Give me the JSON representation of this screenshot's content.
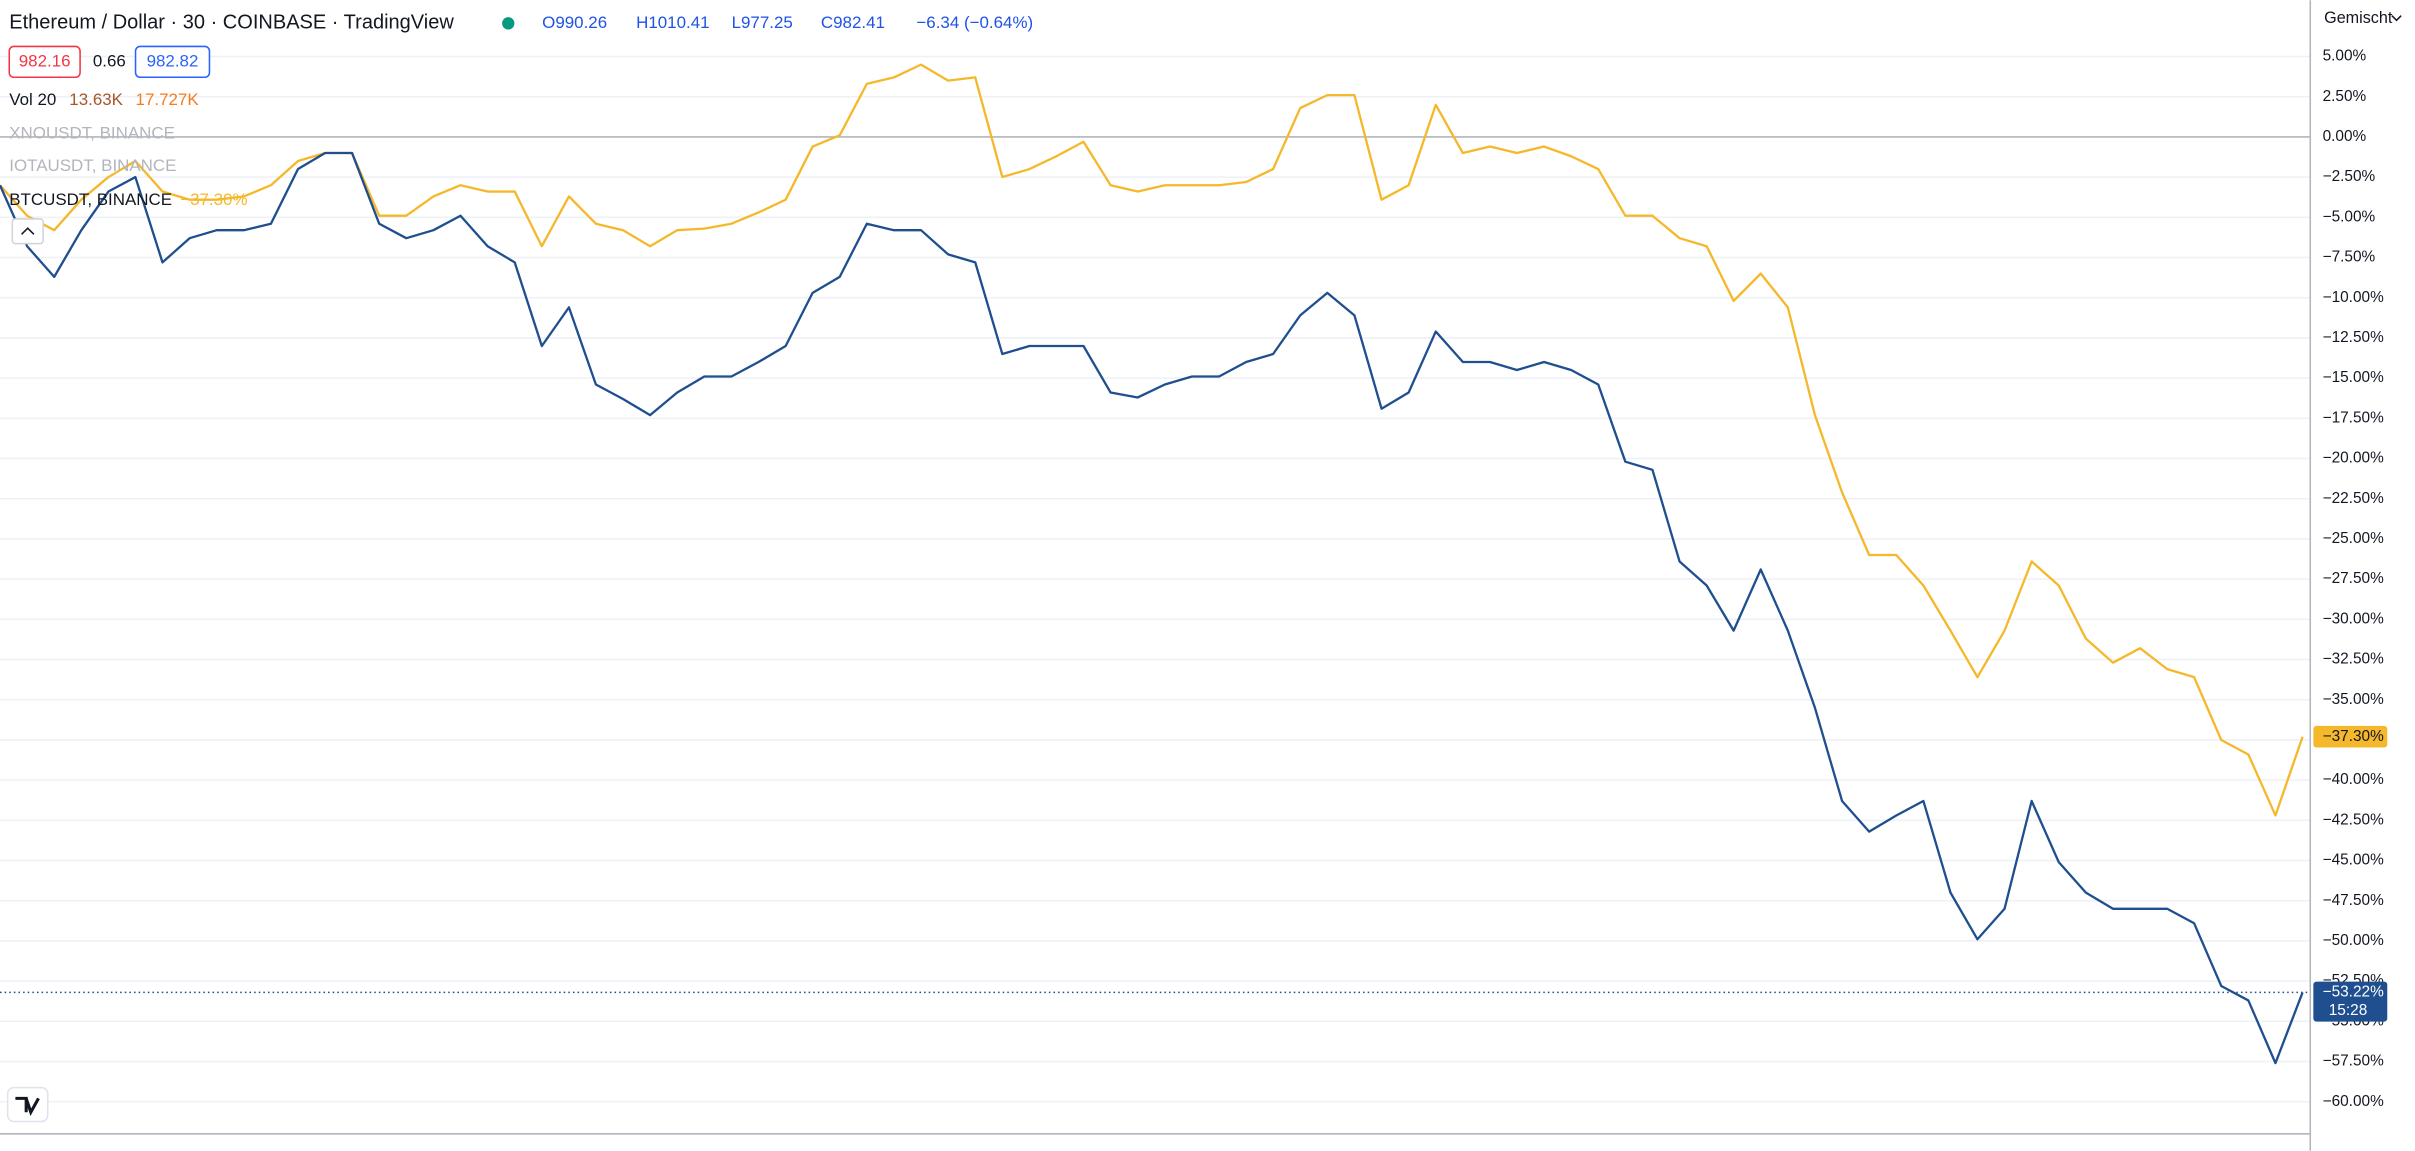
{
  "header": {
    "open": "O990.26",
    "high": "H1010.41",
    "low": "L977.25",
    "close": "C982.41",
    "change": "−6.34 (−0.64%)",
    "bid": "982.16",
    "spread": "0.66",
    "ask": "982.82",
    "volume_label": "Vol 20",
    "volume": "13.63K",
    "volume_ma": "17.727K",
    "scale_mode": "Gemischt"
  },
  "chart_data": {
    "type": "line",
    "title": "Ethereum / Dollar · 30 · COINBASE · TradingView",
    "hidden_series": [
      "XNOUSDT, BINANCE",
      "IOTAUSDT, BINANCE"
    ],
    "series": [
      {
        "name": "BTCUSDT, BINANCE",
        "color": "#f5b82a",
        "legend_value": "−37.30%",
        "last_label": "−37.30%",
        "values": [
          -3.0,
          -4.9,
          -5.8,
          -3.9,
          -2.5,
          -1.5,
          -3.4,
          -3.9,
          -3.9,
          -3.7,
          -3.0,
          -1.5,
          -1.0,
          -1.0,
          -4.9,
          -4.9,
          -3.7,
          -3.0,
          -3.4,
          -3.4,
          -6.8,
          -3.7,
          -5.4,
          -5.8,
          -6.8,
          -5.8,
          -5.7,
          -5.4,
          -4.7,
          -3.9,
          -0.6,
          0.1,
          3.3,
          3.7,
          4.5,
          3.5,
          3.7,
          -2.5,
          -2.0,
          -1.2,
          -0.3,
          -3.0,
          -3.4,
          -3.0,
          -3.0,
          -3.0,
          -2.8,
          -2.0,
          1.8,
          2.6,
          2.6,
          -3.9,
          -3.0,
          2.0,
          -1.0,
          -0.6,
          -1.0,
          -0.6,
          -1.2,
          -2.0,
          -4.9,
          -4.9,
          -6.3,
          -6.8,
          -10.2,
          -8.5,
          -10.6,
          -17.3,
          -22.1,
          -26.0,
          -26.0,
          -27.9,
          -30.7,
          -33.6,
          -30.7,
          -26.4,
          -27.9,
          -31.2,
          -32.7,
          -31.8,
          -33.1,
          -33.6,
          -37.5,
          -38.4,
          -42.2,
          -37.3
        ]
      },
      {
        "color": "#1f4f8f",
        "last_label": "−53.22%",
        "countdown": "15:28",
        "values": [
          -3.0,
          -6.8,
          -8.7,
          -5.8,
          -3.4,
          -2.5,
          -7.8,
          -6.3,
          -5.8,
          -5.8,
          -5.4,
          -2.0,
          -1.0,
          -1.0,
          -5.4,
          -6.3,
          -5.8,
          -4.9,
          -6.8,
          -7.8,
          -13.0,
          -10.6,
          -15.4,
          -16.3,
          -17.3,
          -15.9,
          -14.9,
          -14.9,
          -14.0,
          -13.0,
          -9.7,
          -8.7,
          -5.4,
          -5.8,
          -5.8,
          -7.3,
          -7.8,
          -13.5,
          -13.0,
          -13.0,
          -13.0,
          -15.9,
          -16.2,
          -15.4,
          -14.9,
          -14.9,
          -14.0,
          -13.5,
          -11.1,
          -9.7,
          -11.1,
          -16.9,
          -15.9,
          -12.1,
          -14.0,
          -14.0,
          -14.5,
          -14.0,
          -14.5,
          -15.4,
          -20.2,
          -20.7,
          -26.4,
          -27.9,
          -30.7,
          -26.9,
          -30.7,
          -35.5,
          -41.3,
          -43.2,
          -42.2,
          -41.3,
          -47.0,
          -49.9,
          -48.0,
          -41.3,
          -45.1,
          -47.0,
          -48.0,
          -48.0,
          -48.0,
          -48.9,
          -52.8,
          -53.7,
          -57.6,
          -53.2
        ]
      }
    ],
    "ylim": [
      -61.9,
      8.5
    ],
    "yticks": [
      {
        "value": 5,
        "label": "5.00%"
      },
      {
        "value": 2.5,
        "label": "2.50%"
      },
      {
        "value": 0,
        "label": "0.00%"
      },
      {
        "value": -2.5,
        "label": "−2.50%"
      },
      {
        "value": -5,
        "label": "−5.00%"
      },
      {
        "value": -7.5,
        "label": "−7.50%"
      },
      {
        "value": -10,
        "label": "−10.00%"
      },
      {
        "value": -12.5,
        "label": "−12.50%"
      },
      {
        "value": -15,
        "label": "−15.00%"
      },
      {
        "value": -17.5,
        "label": "−17.50%"
      },
      {
        "value": -20,
        "label": "−20.00%"
      },
      {
        "value": -22.5,
        "label": "−22.50%"
      },
      {
        "value": -25,
        "label": "−25.00%"
      },
      {
        "value": -27.5,
        "label": "−27.50%"
      },
      {
        "value": -30,
        "label": "−30.00%"
      },
      {
        "value": -32.5,
        "label": "−32.50%"
      },
      {
        "value": -35,
        "label": "−35.00%"
      },
      {
        "value": -37.5,
        "label": "−37.50%"
      },
      {
        "value": -40,
        "label": "−40.00%"
      },
      {
        "value": -42.5,
        "label": "−42.50%"
      },
      {
        "value": -45,
        "label": "−45.00%"
      },
      {
        "value": -47.5,
        "label": "−47.50%"
      },
      {
        "value": -50,
        "label": "−50.00%"
      },
      {
        "value": -52.5,
        "label": "−52.50%"
      },
      {
        "value": -55,
        "label": "−55.00%"
      },
      {
        "value": -57.5,
        "label": "−57.50%"
      },
      {
        "value": -60,
        "label": "−60.00%"
      }
    ],
    "grid": true
  }
}
